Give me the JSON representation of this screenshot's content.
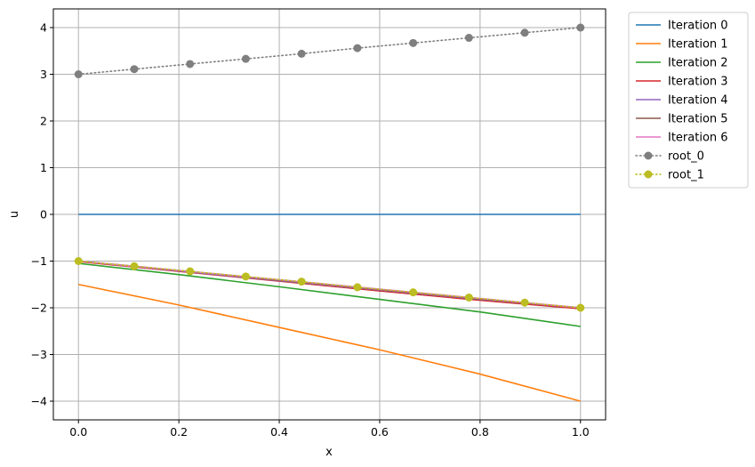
{
  "chart_data": {
    "type": "line",
    "title": "",
    "xlabel": "x",
    "ylabel": "u",
    "xlim": [
      -0.05,
      1.05
    ],
    "ylim": [
      -4.4,
      4.4
    ],
    "xticks": [
      0.0,
      0.2,
      0.4,
      0.6,
      0.8,
      1.0
    ],
    "xtick_labels": [
      "0.0",
      "0.2",
      "0.4",
      "0.6",
      "0.8",
      "1.0"
    ],
    "yticks": [
      -4,
      -3,
      -2,
      -1,
      0,
      1,
      2,
      3,
      4
    ],
    "ytick_labels": [
      "−4",
      "−3",
      "−2",
      "−1",
      "0",
      "1",
      "2",
      "3",
      "4"
    ],
    "grid": true,
    "legend_position": "outside-top-right",
    "series": [
      {
        "name": "Iteration 0",
        "color": "#1f77b4",
        "style": "solid",
        "marker": "none",
        "x": [
          0.0,
          1.0
        ],
        "y": [
          0.0,
          0.0
        ]
      },
      {
        "name": "Iteration 1",
        "color": "#ff7f0e",
        "style": "solid",
        "marker": "none",
        "x": [
          0.0,
          0.2,
          0.4,
          0.6,
          0.8,
          1.0
        ],
        "y": [
          -1.5,
          -1.94,
          -2.42,
          -2.9,
          -3.42,
          -4.0
        ]
      },
      {
        "name": "Iteration 2",
        "color": "#2ca02c",
        "style": "solid",
        "marker": "none",
        "x": [
          0.0,
          0.2,
          0.4,
          0.6,
          0.8,
          1.0
        ],
        "y": [
          -1.05,
          -1.29,
          -1.55,
          -1.82,
          -2.09,
          -2.4
        ]
      },
      {
        "name": "Iteration 3",
        "color": "#d62728",
        "style": "solid",
        "marker": "none",
        "x": [
          0.0,
          0.2,
          0.4,
          0.6,
          0.8,
          1.0
        ],
        "y": [
          -1.01,
          -1.22,
          -1.43,
          -1.64,
          -1.84,
          -2.02
        ]
      },
      {
        "name": "Iteration 4",
        "color": "#9467bd",
        "style": "solid",
        "marker": "none",
        "x": [
          0.0,
          0.2,
          0.4,
          0.6,
          0.8,
          1.0
        ],
        "y": [
          -1.0,
          -1.21,
          -1.42,
          -1.62,
          -1.82,
          -2.0
        ]
      },
      {
        "name": "Iteration 5",
        "color": "#8c564b",
        "style": "solid",
        "marker": "none",
        "x": [
          0.0,
          0.2,
          0.4,
          0.6,
          0.8,
          1.0
        ],
        "y": [
          -1.0,
          -1.2,
          -1.41,
          -1.61,
          -1.81,
          -2.0
        ]
      },
      {
        "name": "Iteration 6",
        "color": "#e377c2",
        "style": "solid",
        "marker": "none",
        "x": [
          0.0,
          0.2,
          0.4,
          0.6,
          0.8,
          1.0
        ],
        "y": [
          -1.0,
          -1.2,
          -1.4,
          -1.6,
          -1.8,
          -2.0
        ]
      },
      {
        "name": "root_0",
        "color": "#7f7f7f",
        "style": "dotted",
        "marker": "circle",
        "x": [
          0.0,
          0.1111,
          0.2222,
          0.3333,
          0.4444,
          0.5556,
          0.6667,
          0.7778,
          0.8889,
          1.0
        ],
        "y": [
          3.0,
          3.11,
          3.22,
          3.33,
          3.44,
          3.56,
          3.67,
          3.78,
          3.89,
          4.0
        ]
      },
      {
        "name": "root_1",
        "color": "#bcbd22",
        "style": "dotted",
        "marker": "circle",
        "x": [
          0.0,
          0.1111,
          0.2222,
          0.3333,
          0.4444,
          0.5556,
          0.6667,
          0.7778,
          0.8889,
          1.0
        ],
        "y": [
          -1.0,
          -1.11,
          -1.22,
          -1.33,
          -1.44,
          -1.56,
          -1.67,
          -1.78,
          -1.89,
          -2.0
        ]
      }
    ]
  }
}
